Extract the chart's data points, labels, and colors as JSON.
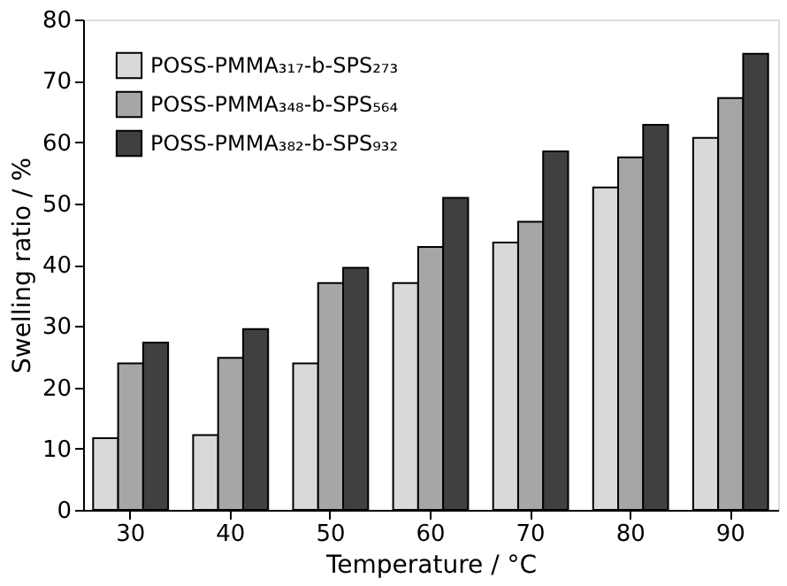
{
  "chart_data": {
    "type": "bar",
    "xlabel": "Temperature / °C",
    "ylabel": "Swelling ratio / %",
    "categories": [
      "30",
      "40",
      "50",
      "60",
      "70",
      "80",
      "90"
    ],
    "series": [
      {
        "name": "POSS-PMMA₃₁₇-b-SPS₂₇₃",
        "color": "#d9d9d9",
        "values": [
          11.7,
          12.2,
          23.9,
          37.0,
          43.6,
          52.6,
          60.7
        ]
      },
      {
        "name": "POSS-PMMA₃₄₈-b-SPS₅₆₄",
        "color": "#a6a6a6",
        "values": [
          23.9,
          24.8,
          37.0,
          42.9,
          47.0,
          57.5,
          67.2
        ]
      },
      {
        "name": "POSS-PMMA₃₈₂-b-SPS₉₃₂",
        "color": "#404040",
        "values": [
          27.3,
          29.5,
          39.5,
          50.9,
          58.5,
          62.8,
          74.4
        ]
      }
    ],
    "ylim": [
      0,
      80
    ],
    "yticks": [
      0,
      10,
      20,
      30,
      40,
      50,
      60,
      70,
      80
    ],
    "grid": false,
    "legend": "top left"
  }
}
